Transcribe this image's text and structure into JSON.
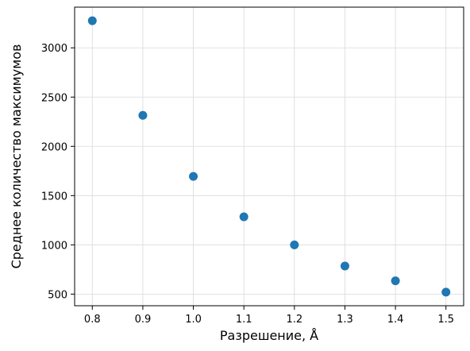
{
  "chart_data": {
    "type": "scatter",
    "title": "",
    "xlabel": "Разрешение, Å",
    "ylabel": "Среднее количество максимумов",
    "x": [
      0.8,
      0.9,
      1.0,
      1.1,
      1.2,
      1.3,
      1.4,
      1.5
    ],
    "y": [
      3275,
      2315,
      1695,
      1285,
      1000,
      785,
      635,
      520
    ],
    "xticks": [
      "0.8",
      "0.9",
      "1.0",
      "1.1",
      "1.2",
      "1.3",
      "1.4",
      "1.5"
    ],
    "yticks": [
      "500",
      "1000",
      "1500",
      "2000",
      "2500",
      "3000"
    ],
    "xlim": [
      0.765,
      1.535
    ],
    "ylim": [
      382,
      3413
    ],
    "grid": true,
    "marker_color": "#1f77b4",
    "grid_color": "#d9d9d9"
  }
}
